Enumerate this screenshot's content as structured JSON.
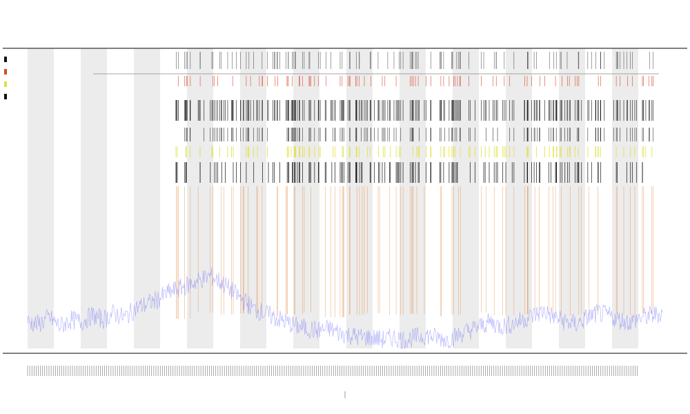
{
  "chart_data": {
    "type": "line",
    "title": "",
    "xlabel": "",
    "ylabel": "",
    "ylim": [
      0,
      1
    ],
    "grid": false,
    "legend_position": "top-left",
    "background_bands": true,
    "colors": {
      "baseline": "#6a6aff",
      "marker_red": "#d84a2a",
      "marker_orange": "#e07a2a",
      "marker_yellow": "#e0e040",
      "marker_black": "#111111",
      "band": "#ececec",
      "axis": "#333333"
    },
    "series": [
      {
        "values": [
          0.12,
          0.11,
          0.14,
          0.1,
          0.13,
          0.12,
          0.15,
          0.13,
          0.16,
          0.14,
          0.18,
          0.2,
          0.22,
          0.25,
          0.27,
          0.29,
          0.31,
          0.33,
          0.3,
          0.26,
          0.22,
          0.18,
          0.16,
          0.14,
          0.12,
          0.1,
          0.09,
          0.08,
          0.09,
          0.07,
          0.06,
          0.05,
          0.05,
          0.04,
          0.05,
          0.04,
          0.05,
          0.06,
          0.05,
          0.04,
          0.06,
          0.08,
          0.1,
          0.12,
          0.1,
          0.11,
          0.13,
          0.15,
          0.17,
          0.14,
          0.12,
          0.11,
          0.14,
          0.16,
          0.15,
          0.13,
          0.12,
          0.14,
          0.15,
          0.16
        ]
      },
      {
        "values": [
          0.9,
          0.85,
          0.95,
          0.7,
          0.9,
          0.88,
          0.92,
          0.8,
          0.95,
          0.9,
          0.93,
          0.87,
          0.91,
          0.96,
          0.84,
          0.9,
          0.94,
          0.89,
          0.92,
          0.86,
          0.9,
          0.95,
          0.88,
          0.91,
          0.93,
          0.87,
          0.9,
          0.94,
          0.89,
          0.92
        ]
      }
    ]
  }
}
